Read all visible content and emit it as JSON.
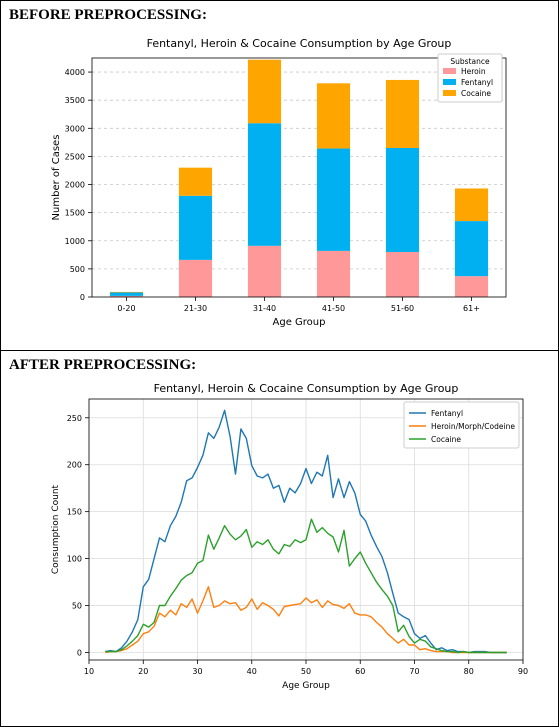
{
  "panels": [
    {
      "heading": "BEFORE PREPROCESSING:",
      "chart_data": {
        "type": "bar",
        "stacked": true,
        "title": "Fentanyl, Heroin & Cocaine Consumption by Age Group",
        "xlabel": "Age Group",
        "ylabel": "Number of Cases",
        "categories": [
          "0-20",
          "21-30",
          "31-40",
          "41-50",
          "51-60",
          "61+"
        ],
        "series": [
          {
            "name": "Heroin",
            "color": "#ff9999",
            "values": [
              20,
              660,
              910,
              820,
              800,
              370
            ]
          },
          {
            "name": "Fentanyl",
            "color": "#00b0f0",
            "values": [
              60,
              1140,
              2180,
              1820,
              1850,
              980
            ]
          },
          {
            "name": "Cocaine",
            "color": "#ffa500",
            "values": [
              10,
              500,
              1130,
              1160,
              1210,
              580
            ]
          }
        ],
        "ylim": [
          0,
          4250
        ],
        "yticks": [
          0,
          500,
          1000,
          1500,
          2000,
          2500,
          3000,
          3500,
          4000
        ],
        "legend": {
          "title": "Substance",
          "position": "top-right"
        },
        "grid": "y"
      }
    },
    {
      "heading": "AFTER PREPROCESSING:",
      "chart_data": {
        "type": "line",
        "title": "Fentanyl, Heroin & Cocaine Consumption by Age Group",
        "xlabel": "Age Group",
        "ylabel": "Consumption Count",
        "x": [
          13,
          14,
          15,
          16,
          17,
          18,
          19,
          20,
          21,
          22,
          23,
          24,
          25,
          26,
          27,
          28,
          29,
          30,
          31,
          32,
          33,
          34,
          35,
          36,
          37,
          38,
          39,
          40,
          41,
          42,
          43,
          44,
          45,
          46,
          47,
          48,
          49,
          50,
          51,
          52,
          53,
          54,
          55,
          56,
          57,
          58,
          59,
          60,
          61,
          62,
          63,
          64,
          65,
          66,
          67,
          68,
          69,
          70,
          71,
          72,
          73,
          74,
          75,
          76,
          77,
          78,
          79,
          80,
          81,
          82,
          83,
          84,
          85,
          86,
          87
        ],
        "series": [
          {
            "name": "Fentanyl",
            "color": "#1f77b4",
            "values": [
              1,
              2,
              1,
              5,
              12,
              22,
              35,
              70,
              78,
              100,
              122,
              118,
              135,
              145,
              160,
              183,
              186,
              197,
              210,
              234,
              228,
              240,
              258,
              230,
              190,
              238,
              228,
              199,
              188,
              186,
              190,
              175,
              178,
              160,
              175,
              170,
              180,
              196,
              180,
              192,
              188,
              210,
              165,
              185,
              165,
              182,
              170,
              147,
              140,
              125,
              113,
              102,
              85,
              63,
              42,
              38,
              35,
              20,
              15,
              18,
              10,
              3,
              5,
              2,
              3,
              1,
              1,
              0,
              1,
              1,
              1,
              0,
              0,
              0,
              0
            ]
          },
          {
            "name": "Heroin/Morph/Codeine",
            "color": "#ff7f0e",
            "values": [
              0,
              1,
              1,
              2,
              4,
              8,
              12,
              20,
              22,
              28,
              42,
              38,
              45,
              40,
              52,
              48,
              57,
              42,
              55,
              70,
              48,
              50,
              55,
              52,
              53,
              45,
              48,
              57,
              46,
              53,
              50,
              46,
              39,
              49,
              50,
              51,
              52,
              58,
              53,
              56,
              48,
              55,
              51,
              50,
              47,
              52,
              42,
              40,
              40,
              38,
              32,
              27,
              20,
              15,
              10,
              14,
              8,
              8,
              3,
              4,
              2,
              1,
              1,
              1,
              0,
              0,
              0,
              0,
              0,
              0,
              0,
              0,
              0,
              0,
              0
            ]
          },
          {
            "name": "Cocaine",
            "color": "#2ca02c",
            "values": [
              1,
              1,
              1,
              3,
              7,
              12,
              18,
              30,
              27,
              32,
              50,
              50,
              60,
              68,
              77,
              82,
              85,
              95,
              98,
              125,
              110,
              122,
              135,
              126,
              120,
              124,
              131,
              112,
              118,
              115,
              120,
              110,
              105,
              115,
              113,
              120,
              117,
              120,
              142,
              128,
              133,
              127,
              123,
              107,
              130,
              92,
              100,
              107,
              95,
              85,
              75,
              67,
              60,
              50,
              22,
              29,
              17,
              10,
              14,
              12,
              6,
              4,
              2,
              1,
              1,
              0,
              1,
              0,
              0,
              0,
              0,
              0,
              0,
              0,
              0
            ]
          }
        ],
        "xlim": [
          10,
          90
        ],
        "ylim": [
          -8,
          270
        ],
        "xticks": [
          10,
          20,
          30,
          40,
          50,
          60,
          70,
          80,
          90
        ],
        "yticks": [
          0,
          50,
          100,
          150,
          200,
          250
        ],
        "legend": {
          "position": "top-right"
        },
        "grid": "both"
      }
    }
  ]
}
